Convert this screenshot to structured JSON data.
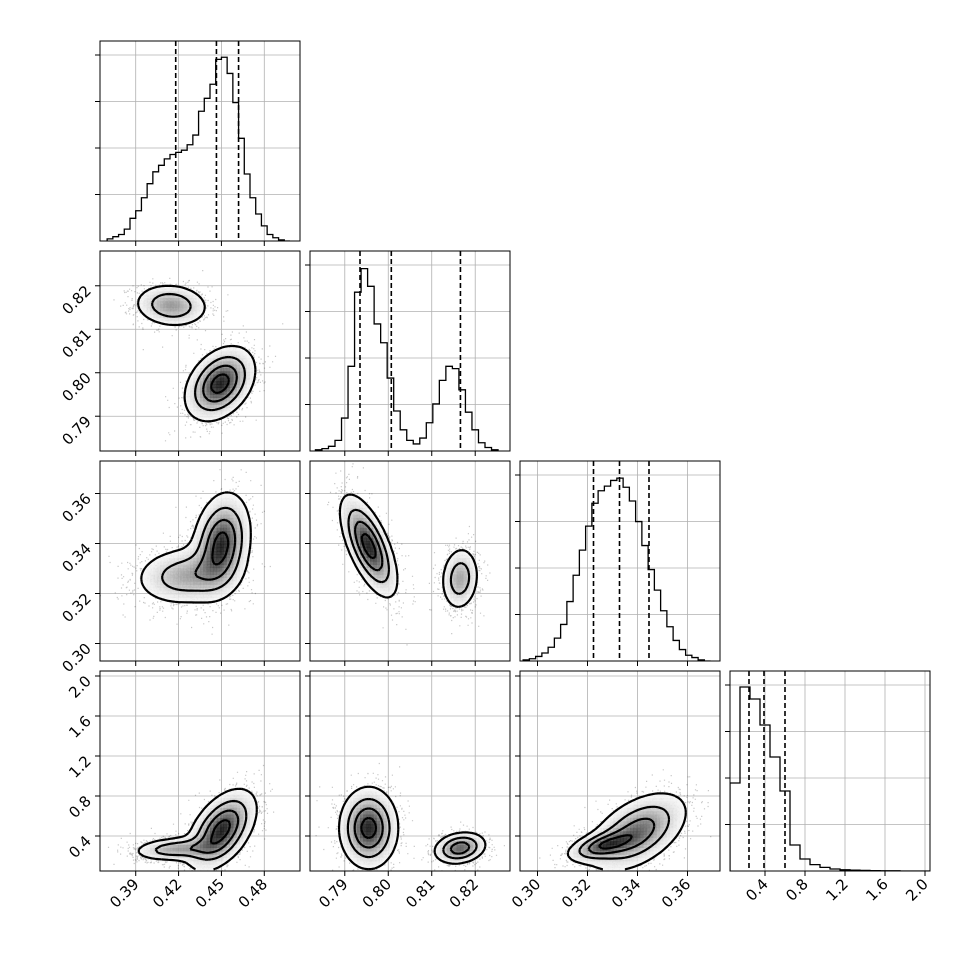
{
  "chart_data": {
    "type": "corner",
    "parameters": [
      {
        "range": [
          0.365,
          0.505
        ],
        "ticks": [
          0.39,
          0.42,
          0.45,
          0.48
        ],
        "tick_labels": [
          "0.39",
          "0.42",
          "0.45",
          "0.48"
        ],
        "quantiles": [
          0.418,
          0.4465,
          0.462
        ],
        "hist": {
          "x": [
            0.372,
            0.376,
            0.38,
            0.384,
            0.388,
            0.392,
            0.396,
            0.4,
            0.404,
            0.408,
            0.412,
            0.416,
            0.42,
            0.424,
            0.428,
            0.432,
            0.436,
            0.44,
            0.444,
            0.448,
            0.452,
            0.456,
            0.46,
            0.464,
            0.468,
            0.472,
            0.476,
            0.48,
            0.484,
            0.488,
            0.492,
            0.496
          ],
          "y": [
            2,
            4,
            6,
            11,
            21,
            28,
            40,
            53,
            64,
            70,
            76,
            80,
            82,
            84,
            89,
            98,
            120,
            132,
            145,
            168,
            170,
            155,
            128,
            95,
            62,
            40,
            25,
            14,
            6,
            3,
            1,
            0
          ],
          "ymax": 185
        }
      },
      {
        "range": [
          0.782,
          0.828
        ],
        "ticks": [
          0.79,
          0.8,
          0.81,
          0.82
        ],
        "tick_labels": [
          "0.79",
          "0.80",
          "0.81",
          "0.82"
        ],
        "quantiles": [
          0.7935,
          0.8007,
          0.8166
        ],
        "hist": {
          "x": [
            0.784,
            0.7855,
            0.787,
            0.7885,
            0.79,
            0.7915,
            0.793,
            0.7945,
            0.796,
            0.7975,
            0.799,
            0.8005,
            0.802,
            0.8035,
            0.805,
            0.8065,
            0.808,
            0.8095,
            0.811,
            0.8125,
            0.814,
            0.8155,
            0.817,
            0.8185,
            0.82,
            0.8215,
            0.823,
            0.8245
          ],
          "y": [
            1,
            2,
            4,
            9,
            28,
            72,
            135,
            155,
            140,
            108,
            92,
            62,
            34,
            18,
            9,
            6,
            11,
            24,
            40,
            60,
            72,
            70,
            52,
            33,
            18,
            7,
            3,
            1
          ],
          "ymax": 170
        }
      },
      {
        "range": [
          0.293,
          0.373
        ],
        "ticks": [
          0.3,
          0.32,
          0.34,
          0.36
        ],
        "tick_labels": [
          "0.30",
          "0.32",
          "0.34",
          "0.36"
        ],
        "quantiles": [
          0.3224,
          0.3328,
          0.3446
        ],
        "hist": {
          "x": [
            0.2955,
            0.298,
            0.3005,
            0.303,
            0.3055,
            0.308,
            0.3105,
            0.313,
            0.3155,
            0.318,
            0.3205,
            0.323,
            0.3255,
            0.328,
            0.3305,
            0.333,
            0.3355,
            0.338,
            0.3405,
            0.343,
            0.3455,
            0.348,
            0.3505,
            0.353,
            0.3555,
            0.358,
            0.3605,
            0.363,
            0.3655,
            0.368
          ],
          "y": [
            1,
            2,
            4,
            7,
            12,
            20,
            32,
            52,
            75,
            97,
            118,
            138,
            149,
            153,
            158,
            160,
            152,
            140,
            122,
            101,
            80,
            62,
            44,
            30,
            18,
            10,
            5,
            3,
            1,
            0
          ],
          "ymax": 175
        }
      },
      {
        "range": [
          0.05,
          2.05
        ],
        "ticks": [
          0.4,
          0.8,
          1.2,
          1.6,
          2.0
        ],
        "tick_labels": [
          "0.4",
          "0.8",
          "1.2",
          "1.6",
          "2.0"
        ],
        "quantiles": [
          0.24,
          0.39,
          0.6
        ],
        "hist": {
          "x": [
            0.1,
            0.2,
            0.3,
            0.4,
            0.5,
            0.6,
            0.7,
            0.8,
            0.9,
            1.0,
            1.1,
            1.2,
            1.3,
            1.4,
            1.5,
            1.6,
            1.7,
            1.8,
            1.9,
            2.0
          ],
          "y": [
            440,
            920,
            860,
            730,
            570,
            400,
            130,
            60,
            32,
            18,
            10,
            6,
            4,
            3,
            2,
            1,
            1,
            0,
            0,
            0
          ],
          "ymax": 1000
        }
      }
    ],
    "pairs": [
      {
        "row": 1,
        "col": 0,
        "components": [
          {
            "mx": 0.415,
            "my": 0.8155,
            "sx": 0.013,
            "sy": 0.0025,
            "rho": -0.1,
            "n": 1100,
            "peak": 0.6
          },
          {
            "mx": 0.449,
            "my": 0.7975,
            "sx": 0.012,
            "sy": 0.0042,
            "rho": 0.35,
            "n": 1600,
            "peak": 1.0
          }
        ]
      },
      {
        "row": 2,
        "col": 0,
        "components": [
          {
            "mx": 0.425,
            "my": 0.327,
            "sx": 0.018,
            "sy": 0.006,
            "rho": 0.1,
            "n": 1300,
            "peak": 0.55
          },
          {
            "mx": 0.45,
            "my": 0.34,
            "sx": 0.01,
            "sy": 0.01,
            "rho": 0.2,
            "n": 1300,
            "peak": 1.0
          }
        ]
      },
      {
        "row": 2,
        "col": 1,
        "components": [
          {
            "mx": 0.7955,
            "my": 0.339,
            "sx": 0.0032,
            "sy": 0.01,
            "rho": -0.65,
            "n": 1600,
            "peak": 1.0
          },
          {
            "mx": 0.8165,
            "my": 0.326,
            "sx": 0.0022,
            "sy": 0.0065,
            "rho": 0.1,
            "n": 1000,
            "peak": 0.55
          }
        ]
      },
      {
        "row": 3,
        "col": 0,
        "components": [
          {
            "mx": 0.418,
            "my": 0.27,
            "sx": 0.015,
            "sy": 0.06,
            "rho": 0.2,
            "n": 1200,
            "peak": 0.55
          },
          {
            "mx": 0.45,
            "my": 0.46,
            "sx": 0.012,
            "sy": 0.2,
            "rho": 0.5,
            "n": 1700,
            "peak": 1.0
          }
        ]
      },
      {
        "row": 3,
        "col": 1,
        "components": [
          {
            "mx": 0.7955,
            "my": 0.48,
            "sx": 0.0033,
            "sy": 0.2,
            "rho": 0.0,
            "n": 1700,
            "peak": 1.0
          },
          {
            "mx": 0.8165,
            "my": 0.28,
            "sx": 0.003,
            "sy": 0.08,
            "rho": 0.2,
            "n": 1100,
            "peak": 0.8
          }
        ]
      },
      {
        "row": 3,
        "col": 2,
        "components": [
          {
            "mx": 0.3255,
            "my": 0.3,
            "sx": 0.007,
            "sy": 0.08,
            "rho": 0.5,
            "n": 1100,
            "peak": 0.85
          },
          {
            "mx": 0.34,
            "my": 0.44,
            "sx": 0.01,
            "sy": 0.2,
            "rho": 0.5,
            "n": 1600,
            "peak": 1.0
          }
        ]
      }
    ],
    "grid": true,
    "title": "",
    "xlabel": "",
    "ylabel": ""
  }
}
